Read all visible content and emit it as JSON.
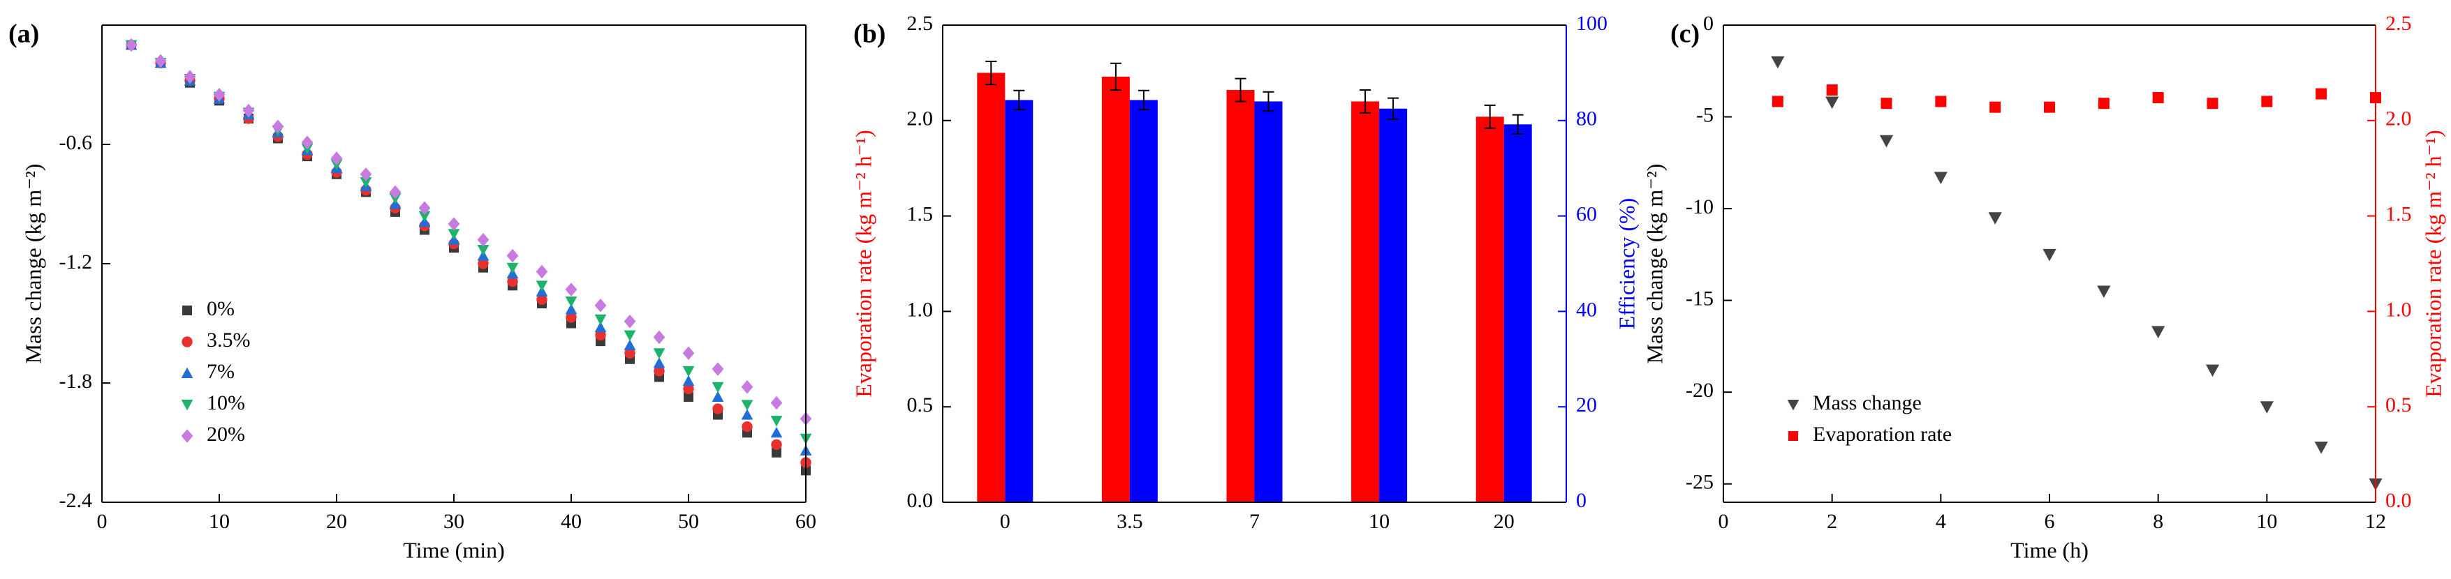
{
  "chart_data": [
    {
      "type": "scatter",
      "label": "(a)",
      "xlabel": "Time (min)",
      "ylabel": "Mass change (kg m⁻²)",
      "x": [
        2.5,
        5,
        7.5,
        10,
        12.5,
        15,
        17.5,
        20,
        22.5,
        25,
        27.5,
        30,
        32.5,
        35,
        37.5,
        40,
        42.5,
        45,
        47.5,
        50,
        52.5,
        55,
        57.5,
        60
      ],
      "series": [
        {
          "name": "0%",
          "color": "#3a3a3a",
          "marker": "square",
          "values": [
            -0.1,
            -0.19,
            -0.29,
            -0.38,
            -0.47,
            -0.57,
            -0.66,
            -0.75,
            -0.84,
            -0.94,
            -1.03,
            -1.12,
            -1.22,
            -1.31,
            -1.4,
            -1.5,
            -1.59,
            -1.68,
            -1.77,
            -1.87,
            -1.96,
            -2.05,
            -2.15,
            -2.24
          ]
        },
        {
          "name": "3.5%",
          "color": "#e8302f",
          "marker": "circle",
          "values": [
            -0.1,
            -0.19,
            -0.28,
            -0.37,
            -0.47,
            -0.56,
            -0.65,
            -0.74,
            -0.83,
            -0.92,
            -1.01,
            -1.1,
            -1.2,
            -1.29,
            -1.38,
            -1.47,
            -1.56,
            -1.65,
            -1.74,
            -1.83,
            -1.93,
            -2.02,
            -2.11,
            -2.2
          ]
        },
        {
          "name": "7%",
          "color": "#1f6fd6",
          "marker": "triangle-up",
          "values": [
            -0.1,
            -0.19,
            -0.28,
            -0.37,
            -0.45,
            -0.54,
            -0.63,
            -0.72,
            -0.81,
            -0.9,
            -0.99,
            -1.08,
            -1.16,
            -1.25,
            -1.34,
            -1.43,
            -1.52,
            -1.61,
            -1.7,
            -1.79,
            -1.87,
            -1.96,
            -2.05,
            -2.14
          ]
        },
        {
          "name": "10%",
          "color": "#1db36a",
          "marker": "triangle-down",
          "values": [
            -0.1,
            -0.19,
            -0.27,
            -0.36,
            -0.44,
            -0.53,
            -0.62,
            -0.7,
            -0.79,
            -0.87,
            -0.96,
            -1.05,
            -1.13,
            -1.22,
            -1.31,
            -1.39,
            -1.48,
            -1.56,
            -1.65,
            -1.74,
            -1.82,
            -1.91,
            -1.99,
            -2.08
          ]
        },
        {
          "name": "20%",
          "color": "#c77be0",
          "marker": "diamond",
          "values": [
            -0.1,
            -0.18,
            -0.26,
            -0.35,
            -0.43,
            -0.51,
            -0.59,
            -0.67,
            -0.75,
            -0.84,
            -0.92,
            -1.0,
            -1.08,
            -1.16,
            -1.24,
            -1.33,
            -1.41,
            -1.49,
            -1.57,
            -1.65,
            -1.73,
            -1.82,
            -1.9,
            -1.98
          ]
        }
      ],
      "xlim": [
        0,
        60
      ],
      "xticks": [
        0,
        10,
        20,
        30,
        40,
        50,
        60
      ],
      "ylim": [
        -2.4,
        0
      ],
      "yticks": [
        -2.4,
        -1.8,
        -1.2,
        -0.6
      ],
      "legend": "lower left"
    },
    {
      "type": "bar",
      "label": "(b)",
      "ylabel": "Evaporation rate (kg m⁻² h⁻¹)",
      "ylabel_color": "#ff0000",
      "y2label": "Efficiency (%)",
      "y2axis_color": "#0000ff",
      "categories": [
        "0",
        "3.5",
        "7",
        "10",
        "20"
      ],
      "series": [
        {
          "color": "#ff0000",
          "values": [
            2.25,
            2.23,
            2.16,
            2.1,
            2.02
          ],
          "errors": [
            0.06,
            0.07,
            0.06,
            0.06,
            0.06
          ]
        },
        {
          "color": "#0000ff",
          "axis": "y2",
          "values": [
            84.3,
            84.3,
            84.0,
            82.5,
            79.2
          ],
          "errors": [
            2,
            2,
            2,
            2.2,
            2
          ]
        }
      ],
      "ylim": [
        0,
        2.5
      ],
      "yticks": [
        {
          "value": 0,
          "label": "0.0"
        },
        0.5,
        {
          "value": 1,
          "label": "1.0"
        },
        1.5,
        {
          "value": 2,
          "label": "2.0"
        },
        2.5
      ],
      "y2lim": [
        0,
        100
      ],
      "y2ticks": [
        0,
        20,
        40,
        60,
        80,
        100
      ]
    },
    {
      "type": "scatter",
      "label": "(c)",
      "xlabel": "Time (h)",
      "ylabel": "Mass change (kg m⁻²)",
      "y2label": "Evaporation rate (kg m⁻² h⁻¹)",
      "y2axis_color": "#ff0000",
      "x": [
        1,
        2,
        3,
        4,
        5,
        6,
        7,
        8,
        9,
        10,
        11,
        12
      ],
      "series": [
        {
          "name": "Mass change",
          "color": "#444444",
          "marker": "triangle-down",
          "values": [
            -2.0,
            -4.2,
            -6.3,
            -8.3,
            -10.5,
            -12.5,
            -14.5,
            -16.7,
            -18.8,
            -20.8,
            -23.0,
            -25.0
          ]
        },
        {
          "name": "Evaporation rate",
          "color": "#ff0000",
          "marker": "square",
          "axis": "y2",
          "values": [
            2.1,
            2.16,
            2.09,
            2.1,
            2.07,
            2.07,
            2.09,
            2.12,
            2.09,
            2.1,
            2.14,
            2.12
          ]
        }
      ],
      "xlim": [
        0,
        12
      ],
      "xticks": [
        0,
        2,
        4,
        6,
        8,
        10,
        12
      ],
      "ylim": [
        -26,
        0
      ],
      "yticks": [
        -25,
        -20,
        -15,
        -10,
        -5,
        0
      ],
      "y2lim": [
        0,
        2.5
      ],
      "y2ticks": [
        {
          "value": 0,
          "label": "0.0"
        },
        0.5,
        {
          "value": 1,
          "label": "1.0"
        },
        1.5,
        {
          "value": 2,
          "label": "2.0"
        },
        2.5
      ],
      "legend": "lower left"
    }
  ]
}
